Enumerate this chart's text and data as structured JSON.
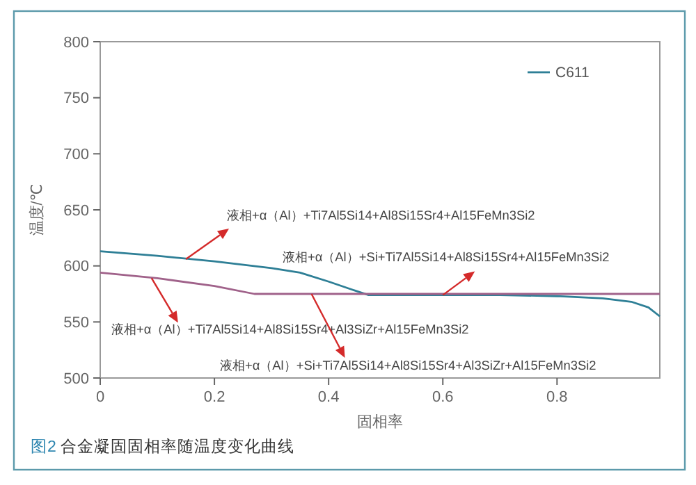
{
  "chart_data": {
    "type": "line",
    "title": "图2 合金凝固固相率随温度变化曲线",
    "xlabel": "固相率",
    "ylabel": "温度/℃",
    "xlim": [
      0,
      0.98
    ],
    "xticks": [
      0,
      0.2,
      0.4,
      0.6,
      0.8
    ],
    "ylim": [
      500,
      800
    ],
    "yticks": [
      500,
      550,
      600,
      650,
      700,
      750,
      800
    ],
    "legend": "top right",
    "grid": false,
    "series": [
      {
        "name": "C611",
        "color": "#2e7f96",
        "x": [
          0,
          0.1,
          0.2,
          0.3,
          0.35,
          0.4,
          0.44,
          0.47,
          0.6,
          0.7,
          0.8,
          0.88,
          0.93,
          0.96,
          0.98
        ],
        "values": [
          613,
          609,
          604,
          598,
          594,
          586,
          579,
          574,
          574,
          574,
          573,
          571,
          568,
          563,
          555
        ]
      },
      {
        "color": "#a0628a",
        "x": [
          0,
          0.1,
          0.2,
          0.27,
          0.5,
          0.98
        ],
        "values": [
          594,
          589,
          582,
          575,
          575,
          575
        ]
      }
    ],
    "annotations": [
      {
        "text": "液相+α（Al）+Ti7Al5Si14+Al8Si15Sr4+Al15FeMn3Si2",
        "x": 0.15,
        "y": 606
      },
      {
        "text": "液相+α（Al）+Si+Ti7Al5Si14+Al8Si15Sr4+Al15FeMn3Si2",
        "x": 0.6,
        "y": 574
      },
      {
        "text": "液相+α（Al）+Ti7Al5Si14+Al8Si15Sr4+Al3SiZr+Al15FeMn3Si2",
        "x": 0.09,
        "y": 589
      },
      {
        "text": "液相+α（Al）+Si+Ti7Al5Si14+Al8Si15Sr4+Al3SiZr+Al15FeMn3Si2",
        "x": 0.37,
        "y": 575
      }
    ]
  }
}
